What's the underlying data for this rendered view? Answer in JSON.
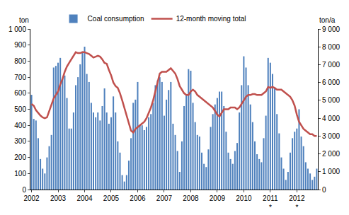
{
  "chart_data": {
    "type": "bar",
    "y_label": "ton",
    "y2_label": "ton/a",
    "legend": "top",
    "grid": false,
    "categories": [
      "2002",
      null,
      null,
      null,
      null,
      null,
      null,
      null,
      null,
      null,
      null,
      null,
      "2003",
      null,
      null,
      null,
      null,
      null,
      null,
      null,
      null,
      null,
      null,
      null,
      "2004",
      null,
      null,
      null,
      null,
      null,
      null,
      null,
      null,
      null,
      null,
      null,
      "2005",
      null,
      null,
      null,
      null,
      null,
      null,
      null,
      null,
      null,
      null,
      null,
      "2006",
      null,
      null,
      null,
      null,
      null,
      null,
      null,
      null,
      null,
      null,
      null,
      "2007",
      null,
      null,
      null,
      null,
      null,
      null,
      null,
      null,
      null,
      null,
      null,
      "2008",
      null,
      null,
      null,
      null,
      null,
      null,
      null,
      null,
      null,
      null,
      null,
      "2009",
      null,
      null,
      null,
      null,
      null,
      null,
      null,
      null,
      null,
      null,
      null,
      "2010",
      null,
      null,
      null,
      null,
      null,
      null,
      null,
      null,
      null,
      null,
      null,
      "2011\n*",
      null,
      null,
      null,
      null,
      null,
      null,
      null,
      null,
      null,
      null,
      null,
      "2012\n*",
      null,
      null,
      null,
      null,
      null,
      null,
      null,
      null,
      null
    ],
    "series": [
      {
        "name": "Coal consumption",
        "type": "bar",
        "color": "#4f81bd",
        "values": [
          590,
          440,
          430,
          320,
          190,
          130,
          100,
          200,
          270,
          340,
          760,
          770,
          790,
          820,
          690,
          710,
          570,
          380,
          380,
          480,
          650,
          700,
          780,
          860,
          890,
          720,
          670,
          540,
          480,
          450,
          480,
          430,
          520,
          630,
          480,
          410,
          450,
          580,
          480,
          300,
          230,
          90,
          50,
          90,
          180,
          320,
          540,
          560,
          670,
          400,
          400,
          370,
          390,
          450,
          470,
          540,
          650,
          680,
          700,
          670,
          460,
          560,
          620,
          670,
          410,
          340,
          240,
          110,
          300,
          520,
          590,
          750,
          740,
          540,
          420,
          340,
          330,
          230,
          160,
          140,
          250,
          390,
          470,
          530,
          570,
          610,
          610,
          520,
          360,
          230,
          190,
          160,
          240,
          290,
          480,
          650,
          830,
          760,
          650,
          530,
          420,
          300,
          220,
          190,
          170,
          320,
          460,
          820,
          790,
          720,
          630,
          470,
          350,
          200,
          130,
          60,
          110,
          230,
          320,
          360,
          380,
          500,
          330,
          270,
          170,
          130,
          100,
          60,
          80,
          130
        ]
      },
      {
        "name": "12-month moving total",
        "type": "line",
        "axis": "y2",
        "color": "#c0504d",
        "values": [
          4800,
          4700,
          4450,
          4300,
          4150,
          4050,
          4000,
          4050,
          4400,
          4800,
          5100,
          5300,
          5500,
          5900,
          6200,
          6600,
          6900,
          7100,
          7300,
          7500,
          7700,
          7650,
          7650,
          7700,
          7700,
          7650,
          7600,
          7500,
          7400,
          7450,
          7500,
          7450,
          7300,
          7100,
          7050,
          6700,
          6400,
          6000,
          5800,
          5700,
          5400,
          5000,
          4600,
          4200,
          3700,
          3300,
          3200,
          3400,
          3500,
          3600,
          3700,
          3800,
          4000,
          4300,
          4600,
          5000,
          5500,
          6100,
          6500,
          6600,
          6600,
          6600,
          6700,
          6800,
          6650,
          6500,
          6200,
          5800,
          5600,
          5400,
          5300,
          5300,
          5500,
          5600,
          5500,
          5300,
          5200,
          5100,
          5000,
          4900,
          4800,
          4700,
          4600,
          4400,
          4200,
          4100,
          4300,
          4500,
          4500,
          4500,
          4600,
          4600,
          4600,
          4500,
          4600,
          4800,
          5000,
          5200,
          5300,
          5300,
          5350,
          5350,
          5300,
          5300,
          5300,
          5400,
          5500,
          5750,
          5700,
          5750,
          5700,
          5600,
          5600,
          5600,
          5500,
          5400,
          5300,
          5200,
          5000,
          4700,
          4200,
          3800,
          3600,
          3400,
          3300,
          3200,
          3100,
          3100,
          3000,
          3000
        ]
      }
    ],
    "ylim": [
      0,
      1000
    ],
    "yticks": [
      0,
      100,
      200,
      300,
      400,
      500,
      600,
      700,
      800,
      900,
      {
        "value": 1000,
        "label": "1 000"
      }
    ],
    "y2lim": [
      0,
      9000
    ],
    "y2ticks": [
      0,
      {
        "value": 1000,
        "label": "1 000"
      },
      {
        "value": 2000,
        "label": "2 000"
      },
      {
        "value": 3000,
        "label": "3 000"
      },
      {
        "value": 4000,
        "label": "4 000"
      },
      {
        "value": 5000,
        "label": "5 000"
      },
      {
        "value": 6000,
        "label": "6 000"
      },
      {
        "value": 7000,
        "label": "7 000"
      },
      {
        "value": 8000,
        "label": "8 000"
      },
      {
        "value": 9000,
        "label": "9 000"
      }
    ]
  }
}
